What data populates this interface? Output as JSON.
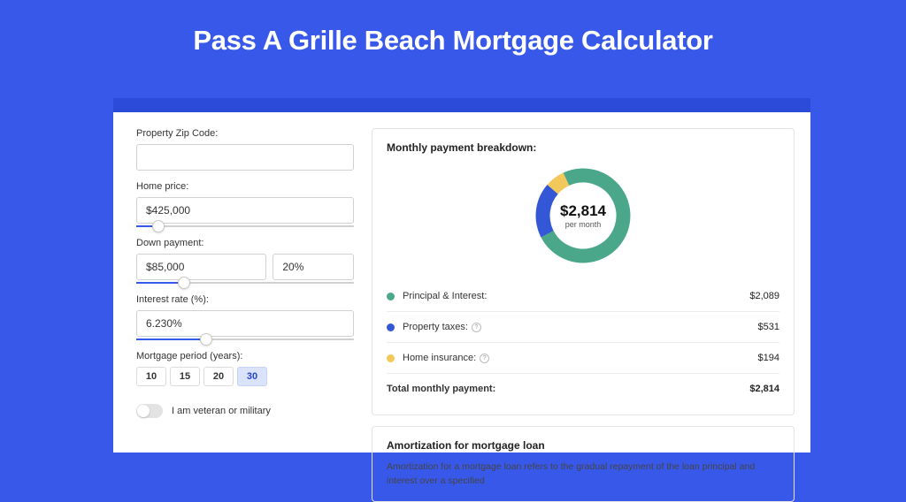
{
  "title": "Pass A Grille Beach Mortgage Calculator",
  "colors": {
    "page_bg": "#3858e9",
    "card_bg": "#2b4bd8",
    "panel_border": "#e3e3e3",
    "slider_fill": "#3858e9"
  },
  "form": {
    "zip": {
      "label": "Property Zip Code:",
      "value": ""
    },
    "home_price": {
      "label": "Home price:",
      "value": "$425,000",
      "slider_pct": 10
    },
    "down_payment": {
      "label": "Down payment:",
      "value": "$85,000",
      "pct_value": "20%",
      "slider_pct": 22
    },
    "interest_rate": {
      "label": "Interest rate (%):",
      "value": "6.230%",
      "slider_pct": 32
    },
    "period": {
      "label": "Mortgage period (years):",
      "options": [
        "10",
        "15",
        "20",
        "30"
      ],
      "active_index": 3
    },
    "veteran": {
      "label": "I am veteran or military",
      "checked": false
    }
  },
  "breakdown": {
    "title": "Monthly payment breakdown:",
    "donut": {
      "amount": "$2,814",
      "sub": "per month",
      "ring_width": 16,
      "slices": [
        {
          "key": "principal_interest",
          "color": "#4aa789",
          "pct": 74.2
        },
        {
          "key": "property_taxes",
          "color": "#3457d5",
          "pct": 18.9
        },
        {
          "key": "home_insurance",
          "color": "#f2c85b",
          "pct": 6.9
        }
      ]
    },
    "items": [
      {
        "label": "Principal & Interest:",
        "value": "$2,089",
        "color": "#4aa789",
        "help": false
      },
      {
        "label": "Property taxes:",
        "value": "$531",
        "color": "#3457d5",
        "help": true
      },
      {
        "label": "Home insurance:",
        "value": "$194",
        "color": "#f2c85b",
        "help": true
      }
    ],
    "total": {
      "label": "Total monthly payment:",
      "value": "$2,814"
    }
  },
  "amortization": {
    "title": "Amortization for mortgage loan",
    "text": "Amortization for a mortgage loan refers to the gradual repayment of the loan principal and interest over a specified"
  }
}
